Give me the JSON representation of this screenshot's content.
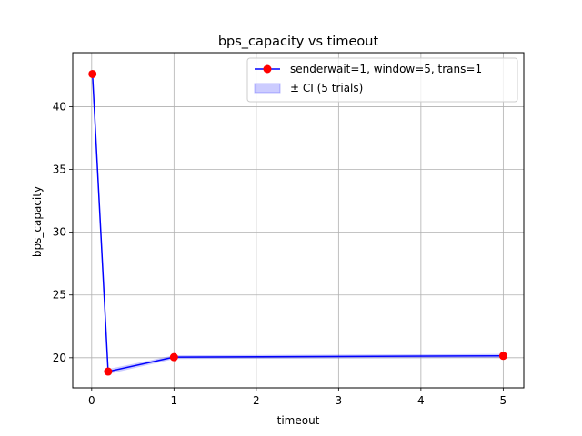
{
  "chart_data": {
    "type": "line",
    "title": "bps_capacity vs timeout",
    "xlabel": "timeout",
    "ylabel": "bps_capacity",
    "xlim": [
      -0.23,
      5.25
    ],
    "ylim": [
      17.6,
      44.3
    ],
    "xticks": [
      0,
      1,
      2,
      3,
      4,
      5
    ],
    "yticks": [
      20,
      25,
      30,
      35,
      40
    ],
    "grid": true,
    "legend_position": "top-right",
    "series": [
      {
        "name": "senderwait=1, window=5, trans=1",
        "x": [
          0.01,
          0.2,
          1,
          5
        ],
        "y": [
          42.6,
          18.9,
          20.05,
          20.15
        ],
        "ci_low": [
          42.4,
          18.7,
          19.9,
          20.0
        ],
        "ci_high": [
          42.8,
          19.1,
          20.2,
          20.3
        ],
        "line_color": "#0000ff",
        "marker_color": "#ff0000"
      }
    ],
    "ci_band": {
      "label": "± CI (5 trials)",
      "color": "#0000ff"
    }
  }
}
